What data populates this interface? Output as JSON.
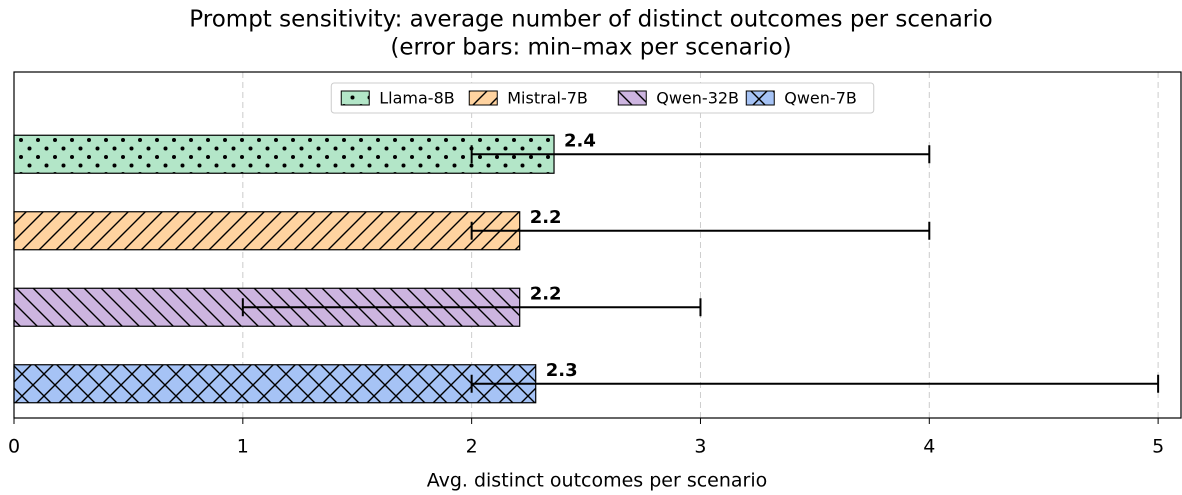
{
  "chart_data": {
    "type": "hbar",
    "title": "Prompt sensitivity: average number of distinct outcomes per scenario",
    "subtitle": "(error bars: min–max per scenario)",
    "xlabel": "Avg. distinct outcomes per scenario",
    "xlim": [
      0,
      5.1
    ],
    "xticks": [
      0,
      1,
      2,
      3,
      4,
      5
    ],
    "grid": true,
    "legend": "upper center",
    "series": [
      {
        "name": "Llama-8B",
        "color": "#b3e6c8",
        "hatch": "dots",
        "values": [
          2.36
        ],
        "value_labels": [
          "2.4"
        ],
        "min": [
          2
        ],
        "max": [
          4
        ]
      },
      {
        "name": "Mistral-7B",
        "color": "#ffd3a0",
        "hatch": "slash",
        "values": [
          2.21
        ],
        "value_labels": [
          "2.2"
        ],
        "min": [
          2
        ],
        "max": [
          4
        ]
      },
      {
        "name": "Qwen-32B",
        "color": "#cdb5e0",
        "hatch": "backslash",
        "values": [
          2.21
        ],
        "value_labels": [
          "2.2"
        ],
        "min": [
          1
        ],
        "max": [
          3
        ]
      },
      {
        "name": "Qwen-7B",
        "color": "#a6c3f5",
        "hatch": "cross",
        "values": [
          2.28
        ],
        "value_labels": [
          "2.3"
        ],
        "min": [
          2
        ],
        "max": [
          5
        ]
      }
    ]
  }
}
